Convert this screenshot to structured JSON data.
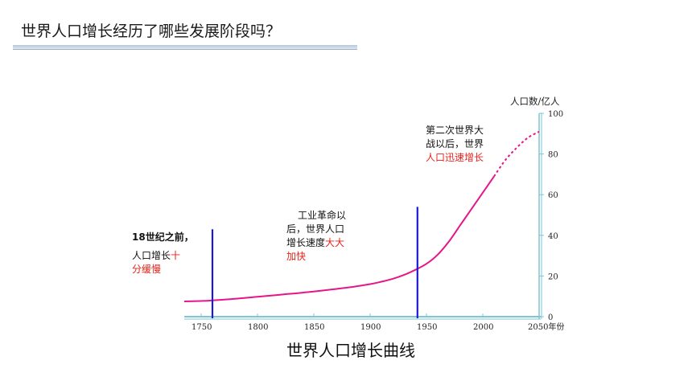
{
  "slide": {
    "title": "世界人口增长经历了哪些发展阶段吗？"
  },
  "chart_data": {
    "type": "line",
    "caption": "世界人口增长曲线",
    "ylabel": "人口数/亿人",
    "xlabel_suffix": "年份",
    "xlim": [
      1735,
      2050
    ],
    "ylim": [
      0,
      100
    ],
    "x_ticks": [
      "1750",
      "1800",
      "1850",
      "1900",
      "1950",
      "2000",
      "2050"
    ],
    "y_ticks": [
      "0",
      "20",
      "40",
      "60",
      "80",
      "100"
    ],
    "series": [
      {
        "values_x": [
          1735,
          1750,
          1760,
          1780,
          1800,
          1820,
          1840,
          1860,
          1880,
          1900,
          1910,
          1920,
          1930,
          1940,
          1950,
          1960,
          1970,
          1980,
          1990,
          2000,
          2010
        ],
        "values_y": [
          7.5,
          7.7,
          8,
          8.8,
          9.8,
          10.8,
          11.8,
          13,
          14.3,
          16,
          17.2,
          18.6,
          20.5,
          23,
          26,
          30.5,
          37,
          45,
          53,
          61,
          69
        ],
        "color": "#e5168a"
      },
      {
        "values_x": [
          2010,
          2020,
          2030,
          2040,
          2050
        ],
        "values_y": [
          69,
          77,
          83,
          88,
          91
        ],
        "color": "#e5168a",
        "dashed": true
      }
    ],
    "markers": [
      {
        "x": 1760,
        "y_top": 43,
        "color": "#1a1ad8"
      },
      {
        "x": 1942,
        "y_top": 54,
        "color": "#1a1ad8"
      }
    ],
    "annotations": [
      {
        "id": "pre1800",
        "lines": [
          {
            "text": "18世纪之前，"
          },
          {
            "text": "人口增长",
            "emph": "十"
          },
          {
            "text": "分缓慢"
          }
        ]
      },
      {
        "id": "industrial",
        "lines": [
          {
            "text": "工业革命以"
          },
          {
            "text": "后，世界人口"
          },
          {
            "text": "增长速度",
            "emph": "大大"
          },
          {
            "text": "加快"
          }
        ]
      },
      {
        "id": "postwar",
        "lines": [
          {
            "text": "第二次世界大"
          },
          {
            "text": "战以后，世界"
          },
          {
            "text": "",
            "emph": "人口迅速增长"
          }
        ]
      }
    ],
    "colors": {
      "axis": "#7ec6d4",
      "line": "#e5168a",
      "marker": "#1a1ad8",
      "emphasis": "#e8221a"
    }
  }
}
